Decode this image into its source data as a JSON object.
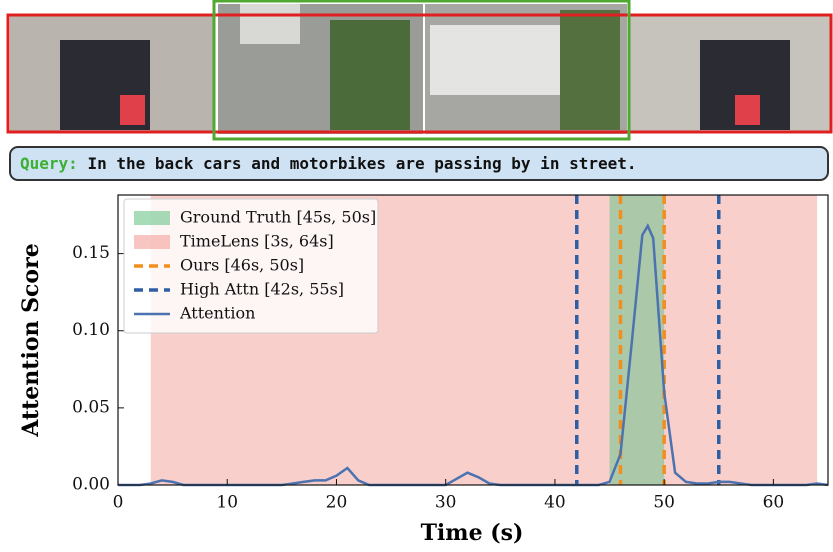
{
  "chart_data": {
    "type": "line",
    "query_label": "Query:",
    "query": "In the back cars and motorbikes are passing by in street.",
    "xlabel": "Time (s)",
    "ylabel": "Attention Score",
    "xlim": [
      0,
      65
    ],
    "ylim": [
      0,
      0.188
    ],
    "xticks": [
      0,
      10,
      20,
      30,
      40,
      50,
      60
    ],
    "yticks": [
      {
        "value": 0,
        "label": "0.00"
      },
      {
        "value": 0.05,
        "label": "0.05"
      },
      {
        "value": 0.1,
        "label": "0.10"
      },
      {
        "value": 0.15,
        "label": "0.15"
      }
    ],
    "spans": [
      {
        "name": "Ground Truth [45s, 50s]",
        "color": "#6cc48a",
        "range": [
          45,
          50
        ]
      },
      {
        "name": "TimeLens [3s, 64s]",
        "color": "#f4a09a",
        "range": [
          3,
          64
        ]
      }
    ],
    "vlines": [
      {
        "name": "Ours [46s, 50s]",
        "color": "#f28e1c",
        "x": [
          46,
          50
        ]
      },
      {
        "name": "High Attn [42s, 55s]",
        "color": "#2e5fa3",
        "x": [
          42,
          55
        ]
      }
    ],
    "series": [
      {
        "name": "Attention",
        "color": "#4c72b0",
        "x": [
          0,
          1,
          2,
          3,
          4,
          5,
          6,
          7,
          8,
          9,
          10,
          11,
          12,
          13,
          14,
          15,
          16,
          17,
          18,
          19,
          20,
          21,
          22,
          23,
          24,
          25,
          26,
          27,
          28,
          29,
          30,
          31,
          32,
          33,
          34,
          35,
          36,
          37,
          38,
          39,
          40,
          41,
          42,
          43,
          44,
          45,
          46,
          47,
          48,
          48.5,
          49,
          50,
          51,
          52,
          53,
          54,
          55,
          56,
          57,
          58,
          59,
          60,
          61,
          62,
          63,
          64,
          65
        ],
        "values": [
          0,
          0,
          0,
          0.001,
          0.003,
          0.002,
          0,
          0,
          0,
          0,
          0,
          0,
          0,
          0,
          0,
          0,
          0.001,
          0.002,
          0.003,
          0.003,
          0.006,
          0.011,
          0.003,
          0,
          0,
          0,
          0,
          0,
          0,
          0,
          0,
          0.004,
          0.008,
          0.005,
          0.001,
          0,
          0,
          0,
          0,
          0,
          0,
          0,
          0,
          0,
          0,
          0.002,
          0.02,
          0.09,
          0.162,
          0.168,
          0.16,
          0.06,
          0.008,
          0.002,
          0.001,
          0.001,
          0.002,
          0.002,
          0.001,
          0,
          0,
          0,
          0,
          0,
          0,
          0.001,
          0
        ]
      }
    ]
  }
}
